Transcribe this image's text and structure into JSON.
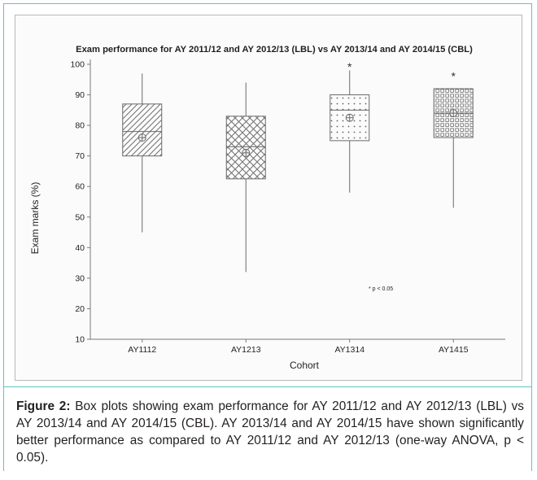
{
  "chart_data": {
    "type": "box",
    "title": "Exam performance for AY 2011/12 and AY 2012/13 (LBL) vs AY 2013/14 and AY 2014/15 (CBL)",
    "xlabel": "Cohort",
    "ylabel": "Exam marks (%)",
    "ylim": [
      10,
      100
    ],
    "yticks": [
      10,
      20,
      30,
      40,
      50,
      60,
      70,
      80,
      90,
      100
    ],
    "categories": [
      "AY1112",
      "AY1213",
      "AY1314",
      "AY1415"
    ],
    "boxes": [
      {
        "category": "AY1112",
        "min": 45,
        "q1": 70,
        "median": 78,
        "q3": 87,
        "max": 97,
        "mean": 76,
        "pattern": "diagonal"
      },
      {
        "category": "AY1213",
        "min": 32,
        "q1": 62.5,
        "median": 73,
        "q3": 83,
        "max": 94,
        "mean": 71,
        "pattern": "crosshatch"
      },
      {
        "category": "AY1314",
        "min": 58,
        "q1": 75,
        "median": 85,
        "q3": 90,
        "max": 98,
        "mean": 82.5,
        "pattern": "dots",
        "outlier_marker": "*",
        "outlier_value": 100
      },
      {
        "category": "AY1415",
        "min": 53,
        "q1": 76,
        "median": 84,
        "q3": 92,
        "max": 92,
        "mean": 84,
        "pattern": "squares",
        "outlier_marker": "*",
        "outlier_value": 97
      }
    ],
    "annotation": "* p < 0.05",
    "annotation_value": 26
  },
  "caption": {
    "label": "Figure 2:",
    "text": " Box plots showing exam performance for AY 2011/12 and AY 2012/13 (LBL) vs AY 2013/14 and AY 2014/15 (CBL). AY 2013/14 and AY 2014/15 have shown significantly better performance as compared to AY 2011/12 and AY 2012/13 (one-way ANOVA, p < 0.05)."
  },
  "colors": {
    "frame": "#5fc3c5",
    "box_stroke": "#6a6a6a",
    "axis": "#7a7a7a",
    "text": "#231f20"
  }
}
